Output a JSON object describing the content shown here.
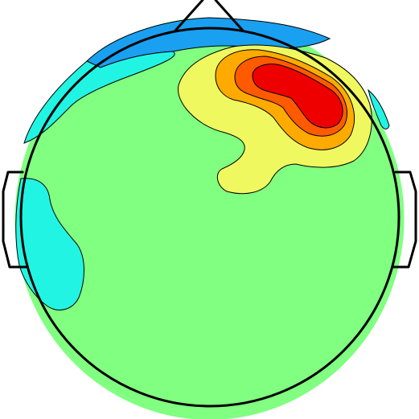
{
  "topomap": {
    "colormap": {
      "background": "#80ff80",
      "dark_blue": "#1aa0f0",
      "light_blue": "#22f4e4",
      "pale_yellow": "#f0f860",
      "yellow": "#e8ff2a",
      "orange": "#ffaa00",
      "red_orange": "#ff5a00",
      "red": "#ee0000",
      "outline": "#000000"
    },
    "regions": [
      {
        "name": "frontal-negative-region",
        "level": "dark_blue"
      },
      {
        "name": "left-frontal-negative-region",
        "level": "light_blue"
      },
      {
        "name": "left-temporal-negative-region",
        "level": "light_blue"
      },
      {
        "name": "right-frontal-negative-region",
        "level": "light_blue"
      },
      {
        "name": "right-frontal-positive-region",
        "level": "pale_yellow"
      },
      {
        "name": "right-frontal-moderate-region",
        "level": "orange"
      },
      {
        "name": "right-frontal-high-region",
        "level": "red_orange"
      },
      {
        "name": "right-frontal-peak-region",
        "level": "red"
      }
    ]
  }
}
